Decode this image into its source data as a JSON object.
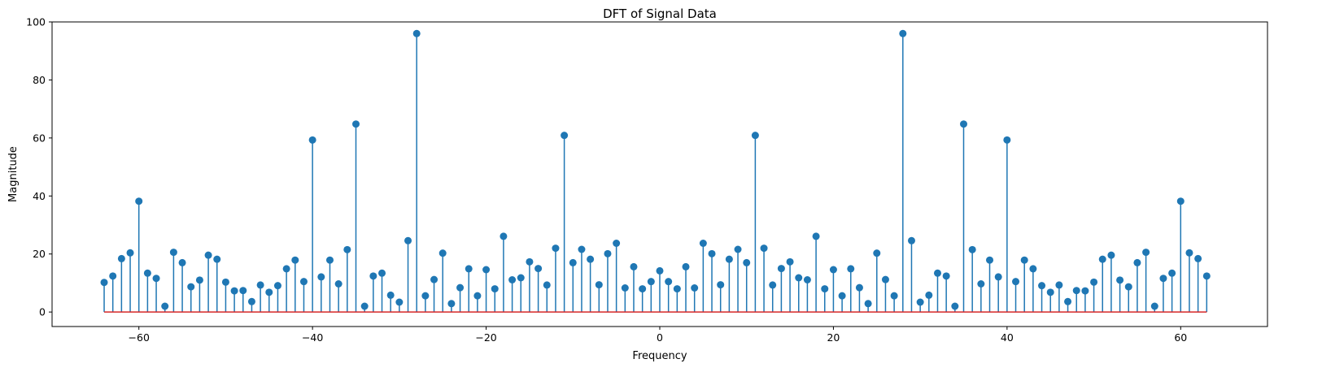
{
  "chart_data": {
    "type": "stem",
    "title": "DFT of Signal Data",
    "xlabel": "Frequency",
    "ylabel": "Magnitude",
    "xlim": [
      -70,
      70
    ],
    "ylim": [
      -5,
      100
    ],
    "xticks": [
      -60,
      -40,
      -20,
      0,
      20,
      40,
      60
    ],
    "yticks": [
      0,
      20,
      40,
      60,
      80,
      100
    ],
    "grid": false,
    "colors": {
      "stem": "#1f77b4",
      "baseline": "#d62728"
    },
    "x": [
      -64,
      -63,
      -62,
      -61,
      -60,
      -59,
      -58,
      -57,
      -56,
      -55,
      -54,
      -53,
      -52,
      -51,
      -50,
      -49,
      -48,
      -47,
      -46,
      -45,
      -44,
      -43,
      -42,
      -41,
      -40,
      -39,
      -38,
      -37,
      -36,
      -35,
      -34,
      -33,
      -32,
      -31,
      -30,
      -29,
      -28,
      -27,
      -26,
      -25,
      -24,
      -23,
      -22,
      -21,
      -20,
      -19,
      -18,
      -17,
      -16,
      -15,
      -14,
      -13,
      -12,
      -11,
      -10,
      -9,
      -8,
      -7,
      -6,
      -5,
      -4,
      -3,
      -2,
      -1,
      0,
      1,
      2,
      3,
      4,
      5,
      6,
      7,
      8,
      9,
      10,
      11,
      12,
      13,
      14,
      15,
      16,
      17,
      18,
      19,
      20,
      21,
      22,
      23,
      24,
      25,
      26,
      27,
      28,
      29,
      30,
      31,
      32,
      33,
      34,
      35,
      36,
      37,
      38,
      39,
      40,
      41,
      42,
      43,
      44,
      45,
      46,
      47,
      48,
      49,
      50,
      51,
      52,
      53,
      54,
      55,
      56,
      57,
      58,
      59,
      60,
      61,
      62,
      63
    ],
    "values": [
      10.2,
      12.4,
      18.4,
      20.4,
      38.2,
      13.4,
      11.6,
      2.0,
      20.6,
      17.0,
      8.7,
      11.0,
      19.6,
      18.2,
      10.3,
      7.3,
      7.4,
      3.6,
      9.3,
      6.8,
      9.1,
      14.9,
      17.9,
      10.5,
      59.3,
      12.1,
      17.9,
      9.7,
      21.5,
      64.8,
      2.0,
      12.4,
      13.4,
      5.8,
      3.4,
      24.6,
      96.0,
      5.6,
      11.2,
      20.3,
      2.9,
      8.4,
      14.9,
      5.6,
      14.6,
      8.0,
      26.1,
      11.1,
      11.8,
      17.3,
      15.0,
      9.3,
      22.0,
      60.9,
      17.0,
      21.6,
      18.2,
      9.4,
      20.1,
      23.7,
      8.3,
      15.6,
      8.0,
      10.5,
      14.2,
      10.5,
      8.0,
      15.6,
      8.3,
      23.7,
      20.1,
      9.4,
      18.2,
      21.6,
      17.0,
      60.9,
      22.0,
      9.3,
      15.0,
      17.3,
      11.8,
      11.1,
      26.1,
      8.0,
      14.6,
      5.6,
      14.9,
      8.4,
      2.9,
      20.3,
      11.2,
      5.6,
      96.0,
      24.6,
      3.4,
      5.8,
      13.4,
      12.4,
      2.0,
      64.8,
      21.5,
      9.7,
      17.9,
      12.1,
      59.3,
      10.5,
      17.9,
      14.9,
      9.1,
      6.8,
      9.3,
      3.6,
      7.4,
      7.3,
      10.3,
      18.2,
      19.6,
      11.0,
      8.7,
      17.0,
      20.6,
      2.0,
      11.6,
      13.4,
      38.2,
      20.4,
      18.4,
      12.4
    ]
  }
}
